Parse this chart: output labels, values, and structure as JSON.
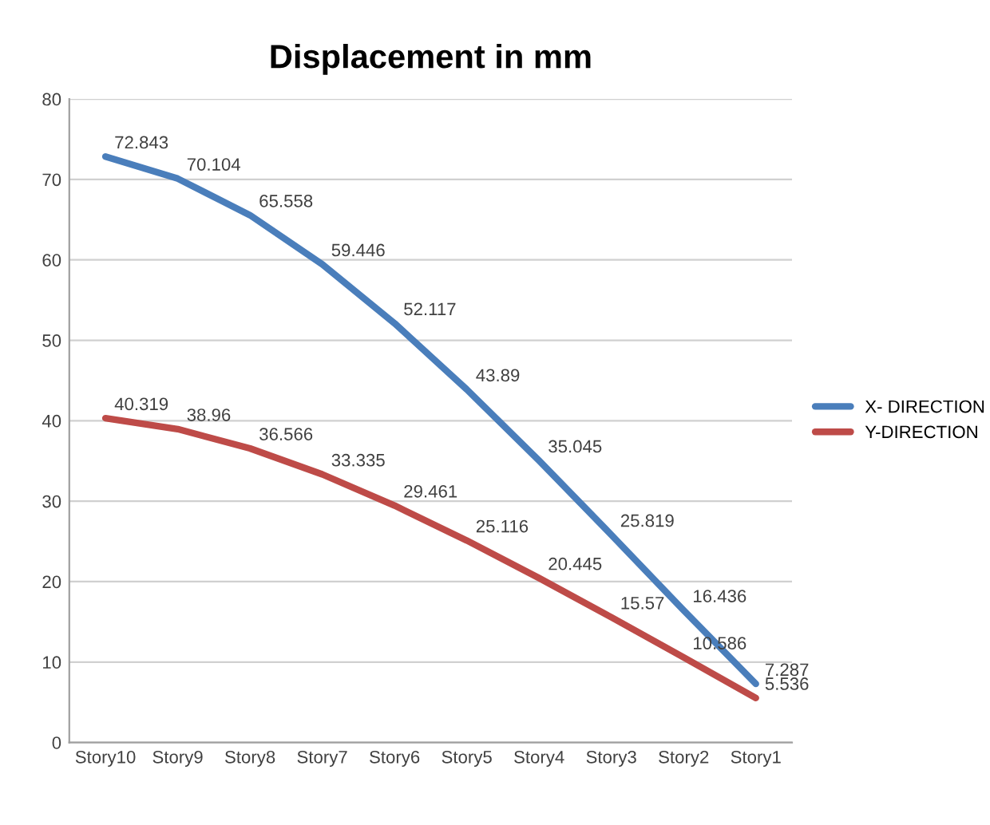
{
  "chart_data": {
    "type": "line",
    "title": "Displacement in mm",
    "categories": [
      "Story10",
      "Story9",
      "Story8",
      "Story7",
      "Story6",
      "Story5",
      "Story4",
      "Story3",
      "Story2",
      "Story1"
    ],
    "series": [
      {
        "name": "X- DIRECTION",
        "color": "#4a7ebb",
        "values": [
          72.843,
          70.104,
          65.558,
          59.446,
          52.117,
          43.89,
          35.045,
          25.819,
          16.436,
          7.287
        ]
      },
      {
        "name": "Y-DIRECTION",
        "color": "#be4b48",
        "values": [
          40.319,
          38.96,
          36.566,
          33.335,
          29.461,
          25.116,
          20.445,
          15.57,
          10.586,
          5.536
        ]
      }
    ],
    "ylim": [
      0,
      80
    ],
    "yticks": [
      0,
      10,
      20,
      30,
      40,
      50,
      60,
      70,
      80
    ],
    "grid": "y",
    "legend": "right",
    "data_labels": true,
    "marker": "none",
    "line_style": "solid"
  }
}
